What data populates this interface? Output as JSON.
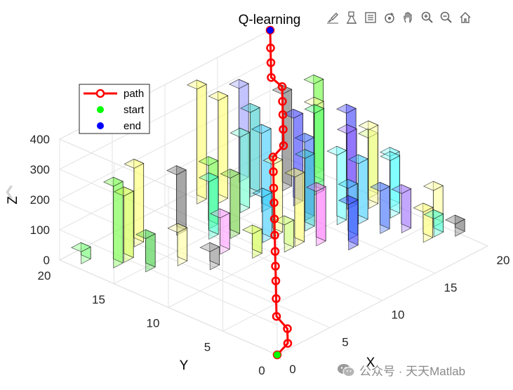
{
  "chart_data": {
    "type": "scatter3d",
    "title": "Q-learning",
    "xlabel": "X",
    "ylabel": "Y",
    "zlabel": "Z",
    "xlim": [
      0,
      20
    ],
    "ylim": [
      0,
      20
    ],
    "zlim": [
      0,
      400
    ],
    "x_ticks": [
      0,
      5,
      10,
      15,
      20
    ],
    "y_ticks": [
      0,
      5,
      10,
      15,
      20
    ],
    "z_ticks": [
      0,
      100,
      200,
      300,
      400
    ],
    "grid": true,
    "legend_position": "top-left",
    "legend": [
      {
        "label": "path",
        "color": "#ff0000",
        "marker": "circle-line"
      },
      {
        "label": "start",
        "color": "#00ff00",
        "marker": "dot"
      },
      {
        "label": "end",
        "color": "#0000ff",
        "marker": "dot"
      }
    ],
    "start": {
      "x": 0,
      "y": 0,
      "z": 0
    },
    "end": {
      "x": 20,
      "y": 20,
      "z": 400
    },
    "path": [
      [
        0,
        0,
        0
      ],
      [
        1,
        0,
        20
      ],
      [
        2,
        1,
        35
      ],
      [
        2,
        2,
        60
      ],
      [
        3,
        3,
        85
      ],
      [
        4,
        4,
        110
      ],
      [
        5,
        5,
        125
      ],
      [
        6,
        6,
        140
      ],
      [
        7,
        7,
        160
      ],
      [
        8,
        8,
        180
      ],
      [
        9,
        9,
        200
      ],
      [
        10,
        10,
        215
      ],
      [
        11,
        11,
        235
      ],
      [
        12,
        12,
        250
      ],
      [
        13,
        12,
        270
      ],
      [
        14,
        13,
        290
      ],
      [
        15,
        14,
        305
      ],
      [
        16,
        15,
        315
      ],
      [
        17,
        16,
        330
      ],
      [
        17,
        17,
        345
      ],
      [
        18,
        18,
        360
      ],
      [
        19,
        19,
        375
      ],
      [
        20,
        20,
        400
      ]
    ],
    "obstacles": [
      {
        "x": 1,
        "y": 19,
        "h": 40,
        "color": "#66ff66"
      },
      {
        "x": 2,
        "y": 17,
        "h": 270,
        "color": "#66ff33"
      },
      {
        "x": 3,
        "y": 17,
        "h": 220,
        "color": "#ccff33"
      },
      {
        "x": 5,
        "y": 18,
        "h": 260,
        "color": "#ffff66"
      },
      {
        "x": 3,
        "y": 15,
        "h": 110,
        "color": "#33cc33"
      },
      {
        "x": 5,
        "y": 14,
        "h": 110,
        "color": "#ffff99"
      },
      {
        "x": 6,
        "y": 12,
        "h": 60,
        "color": "#888888"
      },
      {
        "x": 8,
        "y": 17,
        "h": 200,
        "color": "#666666"
      },
      {
        "x": 9,
        "y": 15,
        "h": 190,
        "color": "#33ffcc"
      },
      {
        "x": 10,
        "y": 16,
        "h": 210,
        "color": "#66ff33"
      },
      {
        "x": 8,
        "y": 13,
        "h": 120,
        "color": "#ff99ff"
      },
      {
        "x": 9,
        "y": 11,
        "h": 80,
        "color": "#ccff33"
      },
      {
        "x": 10,
        "y": 14,
        "h": 200,
        "color": "#66cc33"
      },
      {
        "x": 11,
        "y": 12,
        "h": 150,
        "color": "#33ccff"
      },
      {
        "x": 11,
        "y": 10,
        "h": 90,
        "color": "#ccff66"
      },
      {
        "x": 12,
        "y": 19,
        "h": 380,
        "color": "#ffff66"
      },
      {
        "x": 13,
        "y": 18,
        "h": 340,
        "color": "#ffff66"
      },
      {
        "x": 13,
        "y": 16,
        "h": 250,
        "color": "#66ffcc"
      },
      {
        "x": 14,
        "y": 15,
        "h": 260,
        "color": "#33ccff"
      },
      {
        "x": 15,
        "y": 17,
        "h": 280,
        "color": "#33cccc"
      },
      {
        "x": 16,
        "y": 19,
        "h": 310,
        "color": "#9999ff"
      },
      {
        "x": 12,
        "y": 12,
        "h": 240,
        "color": "#ffff99"
      },
      {
        "x": 12,
        "y": 10,
        "h": 230,
        "color": "#ffff66"
      },
      {
        "x": 13,
        "y": 9,
        "h": 180,
        "color": "#ff66ff"
      },
      {
        "x": 14,
        "y": 11,
        "h": 240,
        "color": "#33cccc"
      },
      {
        "x": 15,
        "y": 12,
        "h": 260,
        "color": "#3366ff"
      },
      {
        "x": 14,
        "y": 7,
        "h": 150,
        "color": "#3333ff"
      },
      {
        "x": 15,
        "y": 8,
        "h": 170,
        "color": "#33ccff"
      },
      {
        "x": 16,
        "y": 10,
        "h": 230,
        "color": "#66ffff"
      },
      {
        "x": 17,
        "y": 9,
        "h": 200,
        "color": "#33ccff"
      },
      {
        "x": 18,
        "y": 11,
        "h": 250,
        "color": "#9966ff"
      },
      {
        "x": 17,
        "y": 7,
        "h": 140,
        "color": "#3366ff"
      },
      {
        "x": 18,
        "y": 6,
        "h": 130,
        "color": "#9966ff"
      },
      {
        "x": 19,
        "y": 8,
        "h": 190,
        "color": "#66ffff"
      },
      {
        "x": 19,
        "y": 10,
        "h": 260,
        "color": "#ffff99"
      },
      {
        "x": 16,
        "y": 14,
        "h": 290,
        "color": "#3333ff"
      },
      {
        "x": 17,
        "y": 16,
        "h": 320,
        "color": "#666666"
      },
      {
        "x": 18,
        "y": 14,
        "h": 270,
        "color": "#33ff66"
      },
      {
        "x": 19,
        "y": 15,
        "h": 260,
        "color": "#ffff99"
      },
      {
        "x": 20,
        "y": 16,
        "h": 300,
        "color": "#66ff33"
      },
      {
        "x": 20,
        "y": 13,
        "h": 250,
        "color": "#3333ff"
      },
      {
        "x": 20,
        "y": 11,
        "h": 200,
        "color": "#ccff66"
      },
      {
        "x": 20,
        "y": 9,
        "h": 170,
        "color": "#66ffff"
      },
      {
        "x": 18,
        "y": 4,
        "h": 100,
        "color": "#ffff66"
      },
      {
        "x": 19,
        "y": 4,
        "h": 60,
        "color": "#33ffcc"
      },
      {
        "x": 20,
        "y": 5,
        "h": 120,
        "color": "#ffff99"
      },
      {
        "x": 20,
        "y": 3,
        "h": 40,
        "color": "#666666"
      }
    ]
  },
  "toolbar": {
    "buttons": [
      {
        "name": "brush-icon"
      },
      {
        "name": "data-tips-icon"
      },
      {
        "name": "legend-icon"
      },
      {
        "name": "rotate-icon"
      },
      {
        "name": "pan-icon"
      },
      {
        "name": "zoom-in-icon"
      },
      {
        "name": "zoom-out-icon"
      },
      {
        "name": "home-icon"
      }
    ]
  },
  "watermark": {
    "text": "公众号 · 天天Matlab"
  }
}
